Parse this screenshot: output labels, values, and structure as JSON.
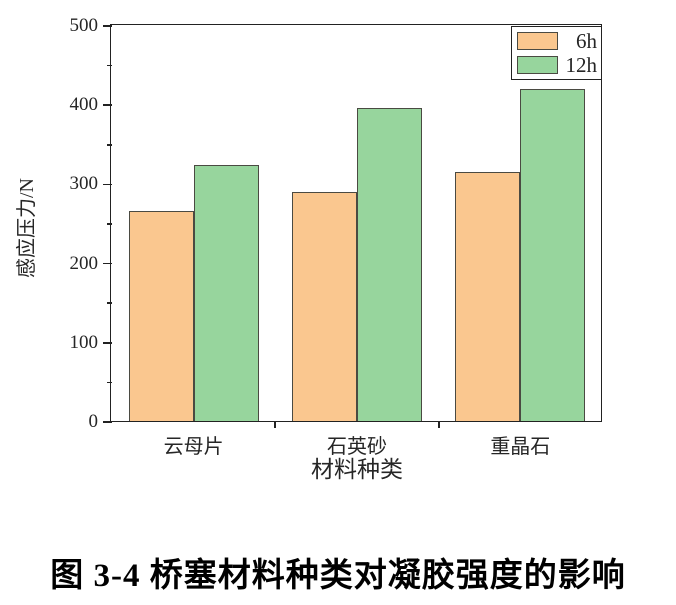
{
  "figure": {
    "caption": "图 3-4  桥塞材料种类对凝胶强度的影响"
  },
  "chart_data": {
    "type": "bar",
    "title": "",
    "categories": [
      "云母片",
      "石英砂",
      "重晶石"
    ],
    "series": [
      {
        "name": "6h",
        "color": "#FAC78F",
        "values": [
          267,
          291,
          316
        ]
      },
      {
        "name": "12h",
        "color": "#97D59D",
        "values": [
          325,
          396,
          421
        ]
      }
    ],
    "xlabel": "材料种类",
    "ylabel": "感应压力/N",
    "ylim": [
      0,
      500
    ],
    "yticks": [
      0,
      100,
      200,
      300,
      400,
      500
    ],
    "ytick_minor": [
      50,
      150,
      250,
      350,
      450
    ],
    "legend": {
      "position": "top-right",
      "labels": [
        "6h",
        "12h"
      ]
    },
    "grid": false,
    "bar_edge_color": "#4a4a42"
  }
}
